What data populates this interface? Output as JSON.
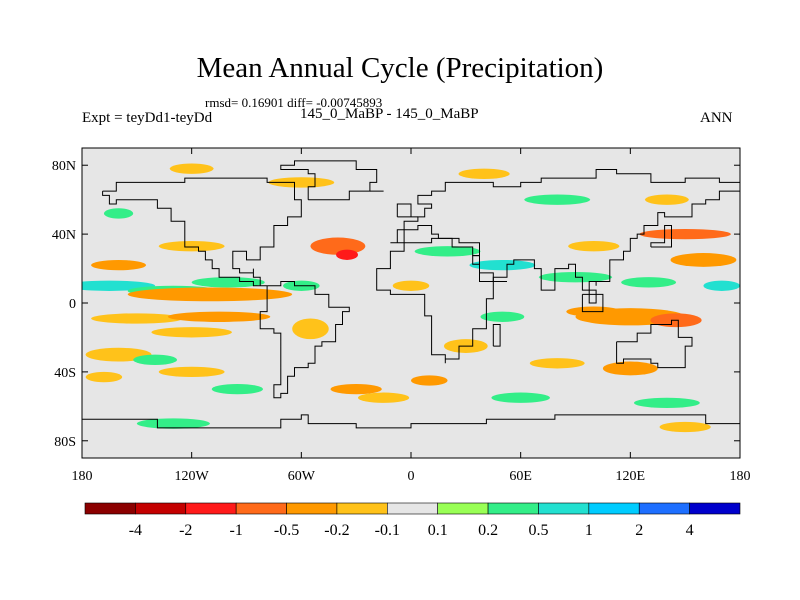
{
  "header": {
    "title": "Mean Annual Cycle (Precipitation)",
    "stats": "rmsd= 0.16901  diff= -0.00745893",
    "expt": "Expt = teyDd1-teyDd",
    "case": "145_0_MaBP - 145_0_MaBP",
    "season": "ANN"
  },
  "chart_data": {
    "type": "heatmap",
    "title": "Mean Annual Cycle (Precipitation)",
    "subtitle": "rmsd= 0.16901  diff= -0.00745893",
    "left_string": "Expt = teyDd1-teyDd",
    "center_string": "145_0_MaBP - 145_0_MaBP",
    "right_string": "ANN",
    "xlim": [
      -180,
      180
    ],
    "ylim": [
      -90,
      90
    ],
    "x_ticks": [
      {
        "value": -180,
        "label": "180"
      },
      {
        "value": -120,
        "label": "120W"
      },
      {
        "value": -60,
        "label": "60W"
      },
      {
        "value": 0,
        "label": "0"
      },
      {
        "value": 60,
        "label": "60E"
      },
      {
        "value": 120,
        "label": "120E"
      },
      {
        "value": 180,
        "label": "180"
      }
    ],
    "y_ticks": [
      {
        "value": 80,
        "label": "80N"
      },
      {
        "value": 40,
        "label": "40N"
      },
      {
        "value": 0,
        "label": "0"
      },
      {
        "value": -40,
        "label": "40S"
      },
      {
        "value": -80,
        "label": "80S"
      }
    ],
    "colorbar": {
      "colors": [
        "#8b0000",
        "#c40000",
        "#ff1a1a",
        "#ff6a1a",
        "#ff9900",
        "#ffc21a",
        "#e6e6e6",
        "#99ff55",
        "#33ee88",
        "#22e0d0",
        "#00ccff",
        "#1e6fff",
        "#0000cc"
      ],
      "labels": [
        "-4",
        "-2",
        "-1",
        "-0.5",
        "-0.2",
        "-0.1",
        "0.1",
        "0.2",
        "0.5",
        "1",
        "2",
        "4"
      ]
    },
    "field_features": [
      {
        "lon": -165,
        "lat": 10,
        "rlon": 25,
        "rlat": 3,
        "level": 9
      },
      {
        "lon": -130,
        "lat": 7,
        "rlon": 25,
        "rlat": 3,
        "level": 8
      },
      {
        "lon": -100,
        "lat": 12,
        "rlon": 20,
        "rlat": 3,
        "level": 8
      },
      {
        "lon": -110,
        "lat": 5,
        "rlon": 45,
        "rlat": 4,
        "level": 4
      },
      {
        "lon": -160,
        "lat": 22,
        "rlon": 15,
        "rlat": 3,
        "level": 4
      },
      {
        "lon": -120,
        "lat": 33,
        "rlon": 18,
        "rlat": 3,
        "level": 5
      },
      {
        "lon": -150,
        "lat": -9,
        "rlon": 25,
        "rlat": 3,
        "level": 5
      },
      {
        "lon": -105,
        "lat": -8,
        "rlon": 28,
        "rlat": 3,
        "level": 4
      },
      {
        "lon": -120,
        "lat": -17,
        "rlon": 22,
        "rlat": 3,
        "level": 5
      },
      {
        "lon": -160,
        "lat": -30,
        "rlon": 18,
        "rlat": 4,
        "level": 5
      },
      {
        "lon": -140,
        "lat": -33,
        "rlon": 12,
        "rlat": 3,
        "level": 8
      },
      {
        "lon": -120,
        "lat": -40,
        "rlon": 18,
        "rlat": 3,
        "level": 5
      },
      {
        "lon": -95,
        "lat": -50,
        "rlon": 14,
        "rlat": 3,
        "level": 8
      },
      {
        "lon": -130,
        "lat": -70,
        "rlon": 20,
        "rlat": 3,
        "level": 8
      },
      {
        "lon": -168,
        "lat": -43,
        "rlon": 10,
        "rlat": 3,
        "level": 5
      },
      {
        "lon": -120,
        "lat": 78,
        "rlon": 12,
        "rlat": 3,
        "level": 5
      },
      {
        "lon": -60,
        "lat": 70,
        "rlon": 18,
        "rlat": 3,
        "level": 5
      },
      {
        "lon": -40,
        "lat": 33,
        "rlon": 15,
        "rlat": 5,
        "level": 3
      },
      {
        "lon": -35,
        "lat": 28,
        "rlon": 6,
        "rlat": 3,
        "level": 2
      },
      {
        "lon": -60,
        "lat": 10,
        "rlon": 10,
        "rlat": 3,
        "level": 8
      },
      {
        "lon": -55,
        "lat": -15,
        "rlon": 10,
        "rlat": 6,
        "level": 5
      },
      {
        "lon": -30,
        "lat": -50,
        "rlon": 14,
        "rlat": 3,
        "level": 4
      },
      {
        "lon": -15,
        "lat": -55,
        "rlon": 14,
        "rlat": 3,
        "level": 5
      },
      {
        "lon": 20,
        "lat": 30,
        "rlon": 18,
        "rlat": 3,
        "level": 8
      },
      {
        "lon": 50,
        "lat": 22,
        "rlon": 18,
        "rlat": 3,
        "level": 9
      },
      {
        "lon": 90,
        "lat": 15,
        "rlon": 20,
        "rlat": 3,
        "level": 8
      },
      {
        "lon": 130,
        "lat": 12,
        "rlon": 15,
        "rlat": 3,
        "level": 8
      },
      {
        "lon": 100,
        "lat": 33,
        "rlon": 14,
        "rlat": 3,
        "level": 5
      },
      {
        "lon": 150,
        "lat": 40,
        "rlon": 25,
        "rlat": 3,
        "level": 3
      },
      {
        "lon": 160,
        "lat": 25,
        "rlon": 18,
        "rlat": 4,
        "level": 4
      },
      {
        "lon": 170,
        "lat": 10,
        "rlon": 10,
        "rlat": 3,
        "level": 9
      },
      {
        "lon": 120,
        "lat": -8,
        "rlon": 30,
        "rlat": 5,
        "level": 4
      },
      {
        "lon": 145,
        "lat": -10,
        "rlon": 14,
        "rlat": 4,
        "level": 3
      },
      {
        "lon": 100,
        "lat": -5,
        "rlon": 15,
        "rlat": 3,
        "level": 4
      },
      {
        "lon": 80,
        "lat": -35,
        "rlon": 15,
        "rlat": 3,
        "level": 5
      },
      {
        "lon": 120,
        "lat": -38,
        "rlon": 15,
        "rlat": 4,
        "level": 4
      },
      {
        "lon": 140,
        "lat": -58,
        "rlon": 18,
        "rlat": 3,
        "level": 8
      },
      {
        "lon": 50,
        "lat": -8,
        "rlon": 12,
        "rlat": 3,
        "level": 8
      },
      {
        "lon": 30,
        "lat": -25,
        "rlon": 12,
        "rlat": 4,
        "level": 5
      },
      {
        "lon": 60,
        "lat": -55,
        "rlon": 16,
        "rlat": 3,
        "level": 8
      },
      {
        "lon": 80,
        "lat": 60,
        "rlon": 18,
        "rlat": 3,
        "level": 8
      },
      {
        "lon": 40,
        "lat": 75,
        "rlon": 14,
        "rlat": 3,
        "level": 5
      },
      {
        "lon": 140,
        "lat": 60,
        "rlon": 12,
        "rlat": 3,
        "level": 5
      },
      {
        "lon": 150,
        "lat": -72,
        "rlon": 14,
        "rlat": 3,
        "level": 5
      },
      {
        "lon": -160,
        "lat": 52,
        "rlon": 8,
        "rlat": 3,
        "level": 8
      },
      {
        "lon": 0,
        "lat": 10,
        "rlon": 10,
        "rlat": 3,
        "level": 5
      },
      {
        "lon": 10,
        "lat": -45,
        "rlon": 10,
        "rlat": 3,
        "level": 4
      }
    ]
  }
}
